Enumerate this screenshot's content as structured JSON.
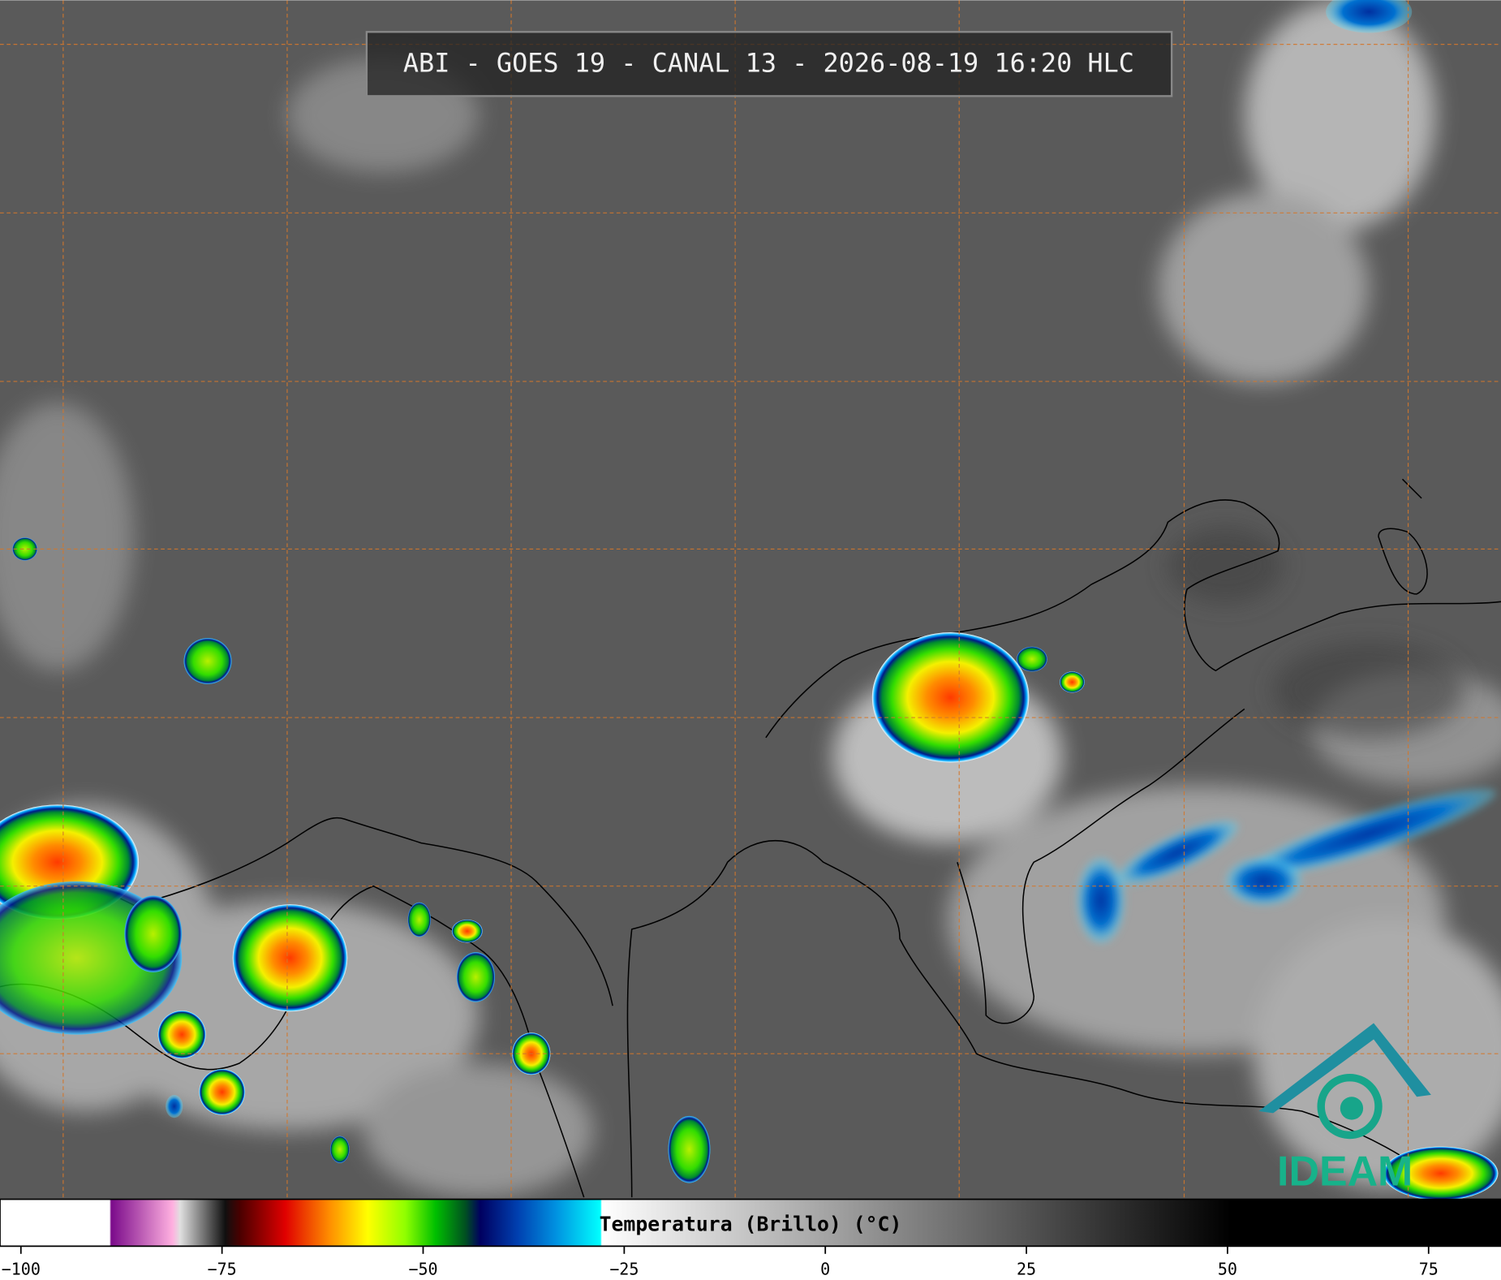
{
  "header": {
    "title": "ABI - GOES 19 - CANAL 13 - 2026-08-19 16:20 HLC"
  },
  "colorbar": {
    "label": "Temperatura (Brillo) (°C)",
    "lim": [
      -102.6,
      84
    ],
    "ticks": [
      {
        "value": -100,
        "label": "−100"
      },
      {
        "value": -75,
        "label": "−75"
      },
      {
        "value": -50,
        "label": "−50"
      },
      {
        "value": -25,
        "label": "−25"
      },
      0,
      25,
      50,
      75
    ]
  },
  "logo": {
    "text": "IDEAM"
  }
}
